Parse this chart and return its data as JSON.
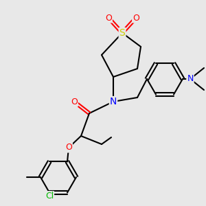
{
  "background_color": "#e8e8e8",
  "bond_color": "#000000",
  "atom_colors": {
    "S": "#cccc00",
    "O": "#ff0000",
    "N": "#0000ff",
    "Cl": "#00bb00",
    "C": "#000000"
  },
  "figsize": [
    3.0,
    3.0
  ],
  "dpi": 100
}
